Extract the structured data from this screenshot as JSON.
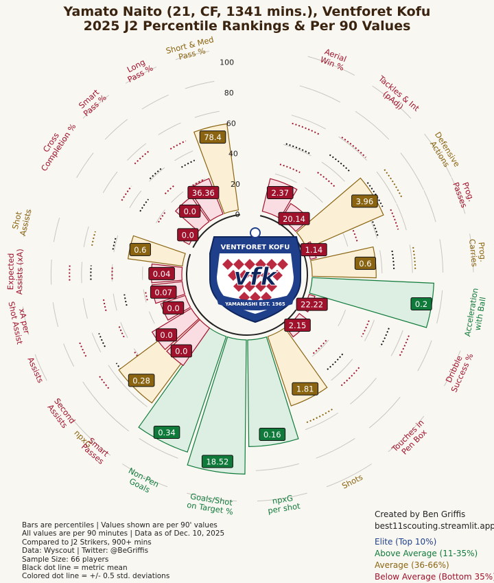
{
  "title_line1": "Yamato Naito (21, CF, 1341 mins.), Ventforet Kofu",
  "title_line2": "2025 J2 Percentile Rankings & Per 90 Values",
  "logo": {
    "top_text": "VENTFORET KOFU",
    "center_text": "vfk",
    "ribbon_text": "YAMANASHI  EST. 1965"
  },
  "notes": [
    "Bars are percentiles | Values shown are per 90' values",
    "All values are per 90 minutes | Data as of Dec. 10, 2025",
    "Compared to J2 Strikers, 900+ mins",
    "Data: Wyscout | Twitter: @BeGriffis",
    "Sample Size: 66 players",
    "Black dot line = metric mean",
    "Colored dot line = +/- 0.5 std. deviations"
  ],
  "credits": {
    "created_by": "Created by Ben Griffis",
    "site": "best11scouting.streamlit.app"
  },
  "legend": [
    {
      "label": "Elite (Top 10%)",
      "color": "#1f3f8a"
    },
    {
      "label": "Above Average (11-35%)",
      "color": "#0f7a3a"
    },
    {
      "label": "Average (36-66%)",
      "color": "#8a6410"
    },
    {
      "label": "Below Average (Bottom 35%)",
      "color": "#a0122c"
    }
  ],
  "colors": {
    "below": {
      "fill": "#f9dde2",
      "edge": "#a0122c",
      "box": "#a0122c"
    },
    "average": {
      "fill": "#fbefd6",
      "edge": "#8a6410",
      "box": "#8a6410"
    },
    "above": {
      "fill": "#dcefe2",
      "edge": "#0f7a3a",
      "box": "#0f7a3a"
    },
    "elite": {
      "fill": "#dbe4f4",
      "edge": "#1f3f8a",
      "box": "#1f3f8a"
    }
  },
  "chart_data": {
    "type": "polar-bar",
    "radial_ticks": [
      0,
      20,
      40,
      60,
      80,
      100
    ],
    "series": [
      {
        "name": "Aerial Win %",
        "group": "defense",
        "percentile": 22,
        "value": "2.37",
        "tier": "below",
        "label_lines": [
          "Aerial",
          "Win %"
        ]
      },
      {
        "name": "Tackles & Int (pAdj)",
        "group": "defense",
        "percentile": 12,
        "value": "20.14",
        "tier": "below",
        "label_lines": [
          "Tackles & Int",
          "(pAdj)"
        ]
      },
      {
        "name": "Defensive Actions",
        "group": "defense",
        "percentile": 55,
        "value": "3.96",
        "tier": "average",
        "label_lines": [
          "Defensive",
          "Actions"
        ]
      },
      {
        "name": "Prog. Passes",
        "group": "carry",
        "percentile": 3,
        "value": "1.14",
        "tier": "below",
        "label_lines": [
          "Prog.",
          "Passes"
        ]
      },
      {
        "name": "Prog. Carries",
        "group": "carry",
        "percentile": 42,
        "value": "0.6",
        "tier": "average",
        "label_lines": [
          "Prog.",
          "Carries"
        ]
      },
      {
        "name": "Acceleration with Ball",
        "group": "carry",
        "percentile": 80,
        "value": "0.2",
        "tier": "above",
        "label_lines": [
          "Acceleration",
          "with Ball"
        ]
      },
      {
        "name": "Dribble Success %",
        "group": "carry",
        "percentile": 0,
        "value": "22.22",
        "tier": "below",
        "label_lines": [
          "Dribble",
          "Success %"
        ]
      },
      {
        "name": "Touches in Pen Box",
        "group": "shoot",
        "percentile": 8,
        "value": "2.15",
        "tier": "below",
        "label_lines": [
          "Touches in",
          "Pen Box"
        ]
      },
      {
        "name": "Shots",
        "group": "shoot",
        "percentile": 48,
        "value": "1.81",
        "tier": "average",
        "label_lines": [
          "Shots"
        ]
      },
      {
        "name": "npxG per shot",
        "group": "shoot",
        "percentile": 70,
        "value": "0.16",
        "tier": "above",
        "label_lines": [
          "npxG",
          "per shot"
        ]
      },
      {
        "name": "Goals/Shot on Target %",
        "group": "shoot",
        "percentile": 88,
        "value": "18.52",
        "tier": "above",
        "label_lines": [
          "Goals/Shot",
          "on Target %"
        ]
      },
      {
        "name": "Non-Pen Goals",
        "group": "shoot",
        "percentile": 80,
        "value": "0.34",
        "tier": "above",
        "label_lines": [
          "Non-Pen",
          "Goals"
        ]
      },
      {
        "name": "npxG",
        "group": "shoot",
        "percentile": 62,
        "value": "0.28",
        "tier": "average",
        "label_lines": [
          "npxG"
        ]
      },
      {
        "name": "Smart Passes",
        "group": "create",
        "percentile": 30,
        "value": "0.0",
        "tier": "below",
        "label_lines": [
          "Smart",
          "Passes"
        ]
      },
      {
        "name": "Second Assists",
        "group": "create",
        "percentile": 30,
        "value": "0.0",
        "tier": "below",
        "label_lines": [
          "Second",
          "Assists"
        ]
      },
      {
        "name": "Assists",
        "group": "create",
        "percentile": 17,
        "value": "0.0",
        "tier": "below",
        "label_lines": [
          "Assists"
        ]
      },
      {
        "name": "xA per Shot Assist",
        "group": "create",
        "percentile": 20,
        "value": "0.07",
        "tier": "below",
        "label_lines": [
          "xA per",
          "Shot Assist"
        ]
      },
      {
        "name": "Expected Assists (xA)",
        "group": "create",
        "percentile": 20,
        "value": "0.04",
        "tier": "below",
        "label_lines": [
          "Expected",
          "Assists (xA)"
        ]
      },
      {
        "name": "Shot Assists",
        "group": "create",
        "percentile": 36,
        "value": "0.6",
        "tier": "average",
        "label_lines": [
          "Shot",
          "Assists"
        ]
      },
      {
        "name": "Cross Completion %",
        "group": "pass",
        "percentile": 0,
        "value": "0.0",
        "tier": "below",
        "label_lines": [
          "Cross",
          "Completion %"
        ]
      },
      {
        "name": "Smart Pass %",
        "group": "pass",
        "percentile": 20,
        "value": "0.0",
        "tier": "below",
        "label_lines": [
          "Smart",
          "Pass %"
        ]
      },
      {
        "name": "Long Pass %",
        "group": "pass",
        "percentile": 25,
        "value": "36.36",
        "tier": "below",
        "label_lines": [
          "Long",
          "Pass %"
        ]
      },
      {
        "name": "Short & Med Pass %",
        "group": "pass",
        "percentile": 57,
        "value": "78.4",
        "tier": "average",
        "label_lines": [
          "Short & Med",
          "Pass %"
        ]
      }
    ]
  }
}
